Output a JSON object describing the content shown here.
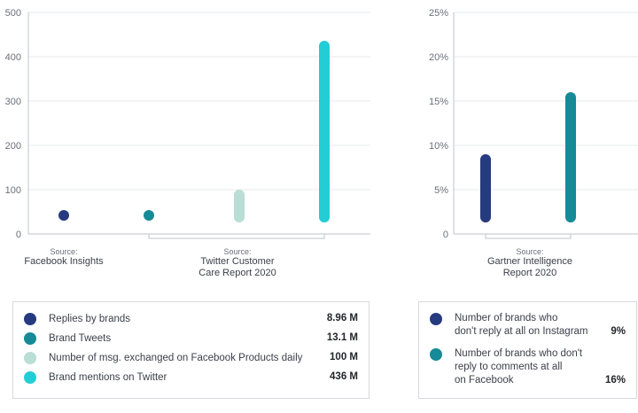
{
  "chart_data": [
    {
      "type": "bar",
      "categories": [
        "Replies by brands",
        "Brand Tweets",
        "Number of msg. exchanged on Facebook Products daily",
        "Brand mentions on Twitter"
      ],
      "values": [
        8.96,
        13.1,
        100,
        436
      ],
      "ylim": [
        0,
        500
      ],
      "yticks": [
        0,
        100,
        200,
        300,
        400,
        500
      ],
      "ytick_labels": [
        "0",
        "100",
        "200",
        "300",
        "400",
        "500"
      ],
      "grid": true,
      "sources": [
        {
          "label": "Source:",
          "lines": [
            "Facebook Insights"
          ]
        },
        {
          "label": "Source:",
          "lines": [
            "Twitter Customer",
            "Care Report 2020"
          ]
        }
      ],
      "legend": [
        {
          "label": "Replies by brands",
          "value_text": "8.96 M",
          "color": "#263a80"
        },
        {
          "label": "Brand Tweets",
          "value_text": "13.1 M",
          "color": "#168a96"
        },
        {
          "label": "Number of msg. exchanged on Facebook Products daily",
          "value_text": "100 M",
          "color": "#b9ded4"
        },
        {
          "label": "Brand mentions on Twitter",
          "value_text": "436 M",
          "color": "#22cdd6"
        }
      ]
    },
    {
      "type": "bar",
      "categories": [
        "Number of brands who don't reply at all on Instagram",
        "Number of brands who don't reply to comments at all on Facebook"
      ],
      "values": [
        9,
        16
      ],
      "ylim": [
        0,
        25
      ],
      "yticks": [
        0,
        5,
        10,
        15,
        20,
        25
      ],
      "ytick_labels": [
        "0",
        "5%",
        "10%",
        "15%",
        "20%",
        "25%"
      ],
      "grid": true,
      "sources": [
        {
          "label": "Source:",
          "lines": [
            "Gartner Intelligence",
            "Report 2020"
          ]
        }
      ],
      "legend": [
        {
          "label": "Number of brands who\ndon't reply at all on Instagram",
          "value_text": "9%",
          "color": "#263a80"
        },
        {
          "label": "Number of brands who don't\nreply to comments at all\non Facebook",
          "value_text": "16%",
          "color": "#168a96"
        }
      ]
    }
  ]
}
